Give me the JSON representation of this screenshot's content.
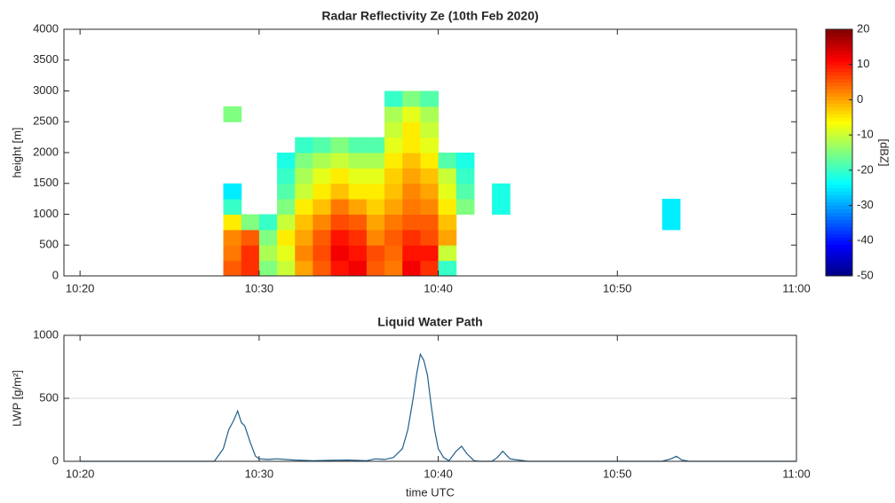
{
  "chart_data": [
    {
      "type": "heatmap",
      "title": "Radar Reflectivity Ze (10th Feb 2020)",
      "ylabel": "height [m]",
      "colorbar_label": "[dBZ]",
      "colormap": "jet",
      "clim": [
        -50,
        20
      ],
      "cticks": [
        -50,
        -40,
        -30,
        -20,
        -10,
        0,
        10,
        20
      ],
      "cell_width": 1,
      "cell_height": 250,
      "x": [
        28.5,
        29.5,
        30.5,
        31.5,
        32.5,
        33.5,
        34.5,
        35.5,
        36.5,
        37.5,
        38.5,
        39.5,
        40.5,
        41.5,
        42.5,
        43.5,
        53
      ],
      "y": [
        125,
        375,
        625,
        875,
        1125,
        1375,
        1625,
        1875,
        2125,
        2375,
        2625,
        2875
      ],
      "z": [
        [
          5,
          8,
          -15,
          -10,
          0,
          5,
          10,
          12,
          5,
          3,
          12,
          8,
          -20,
          null,
          null,
          null,
          null
        ],
        [
          3,
          8,
          -12,
          -8,
          2,
          6,
          12,
          10,
          6,
          4,
          10,
          10,
          -10,
          null,
          null,
          null,
          null
        ],
        [
          2,
          5,
          -15,
          -5,
          0,
          5,
          10,
          8,
          2,
          5,
          8,
          6,
          0,
          null,
          null,
          null,
          null
        ],
        [
          -5,
          -15,
          -20,
          -10,
          -2,
          2,
          6,
          5,
          0,
          3,
          5,
          5,
          -2,
          null,
          null,
          null,
          -25
        ],
        [
          -20,
          null,
          null,
          -15,
          -5,
          -2,
          3,
          0,
          -3,
          0,
          3,
          2,
          -5,
          -15,
          null,
          -22,
          -25
        ],
        [
          -25,
          null,
          null,
          -18,
          -10,
          -5,
          -2,
          -5,
          -5,
          -2,
          2,
          0,
          -8,
          -18,
          null,
          -22,
          null
        ],
        [
          null,
          null,
          null,
          -20,
          -12,
          -8,
          -5,
          -8,
          -8,
          -3,
          0,
          -2,
          -10,
          -20,
          null,
          null,
          null
        ],
        [
          null,
          null,
          null,
          -22,
          -15,
          -12,
          -10,
          -12,
          -12,
          -5,
          -2,
          -5,
          -18,
          -22,
          null,
          null,
          null
        ],
        [
          null,
          null,
          null,
          null,
          -20,
          -18,
          -15,
          -18,
          -18,
          -8,
          -5,
          -8,
          null,
          null,
          null,
          null,
          null
        ],
        [
          null,
          null,
          null,
          null,
          null,
          null,
          null,
          null,
          null,
          -10,
          -5,
          -10,
          null,
          null,
          null,
          null,
          null
        ],
        [
          -15,
          null,
          null,
          null,
          null,
          null,
          null,
          null,
          null,
          -12,
          -8,
          -12,
          null,
          null,
          null,
          null,
          null
        ],
        [
          null,
          null,
          null,
          null,
          null,
          null,
          null,
          null,
          null,
          -20,
          -15,
          -18,
          null,
          null,
          null,
          null,
          null
        ]
      ],
      "xlim": [
        19.1,
        60
      ],
      "xticks": [
        {
          "value": 20,
          "label": "10:20"
        },
        {
          "value": 30,
          "label": "10:30"
        },
        {
          "value": 40,
          "label": "10:40"
        },
        {
          "value": 50,
          "label": "10:50"
        },
        {
          "value": 60,
          "label": "11:00"
        }
      ],
      "ylim": [
        0,
        4000
      ],
      "yticks": [
        0,
        500,
        1000,
        1500,
        2000,
        2500,
        3000,
        3500,
        4000
      ]
    },
    {
      "type": "line",
      "title": "Liquid Water Path",
      "ylabel": "LWP [g/m²]",
      "xlabel": "time UTC",
      "color": "#1f5f8b",
      "grid": true,
      "x": [
        20,
        27.5,
        28,
        28.3,
        28.6,
        28.8,
        29,
        29.2,
        29.5,
        29.8,
        30,
        30.5,
        31,
        32,
        33,
        34,
        35,
        36,
        36.5,
        37,
        37.5,
        38,
        38.3,
        38.6,
        38.8,
        39,
        39.2,
        39.4,
        39.6,
        39.8,
        40,
        40.3,
        40.6,
        41,
        41.3,
        41.6,
        42,
        42.3,
        43,
        43.3,
        43.6,
        44,
        45,
        50,
        52.5,
        53,
        53.3,
        53.6,
        54,
        60
      ],
      "values": [
        0,
        0,
        100,
        250,
        330,
        400,
        310,
        280,
        150,
        40,
        20,
        15,
        20,
        10,
        5,
        8,
        10,
        5,
        20,
        15,
        30,
        100,
        250,
        500,
        700,
        850,
        800,
        680,
        450,
        250,
        100,
        30,
        5,
        80,
        120,
        60,
        5,
        0,
        0,
        30,
        80,
        20,
        0,
        0,
        0,
        20,
        40,
        10,
        0,
        0
      ],
      "xlim": [
        19.1,
        60
      ],
      "xticks": [
        {
          "value": 20,
          "label": "10:20"
        },
        {
          "value": 30,
          "label": "10:30"
        },
        {
          "value": 40,
          "label": "10:40"
        },
        {
          "value": 50,
          "label": "10:50"
        },
        {
          "value": 60,
          "label": "11:00"
        }
      ],
      "ylim": [
        0,
        1000
      ],
      "yticks": [
        0,
        500,
        1000
      ]
    }
  ]
}
